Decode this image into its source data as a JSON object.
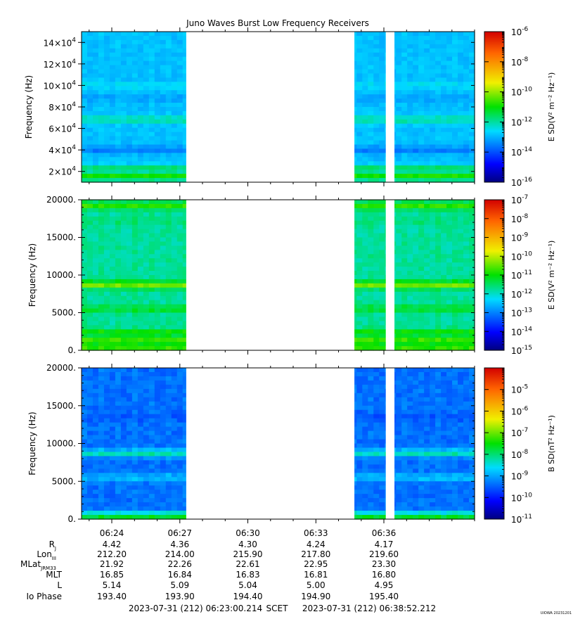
{
  "title": "Juno Waves Burst Low Frequency Receivers",
  "footer": {
    "scet_start": "2023-07-31 (212) 06:23:00.214",
    "scet_label": "SCET",
    "scet_end": "2023-07-31 (212) 06:38:52.212",
    "version": "UIOWA 20231201"
  },
  "chart_data": [
    {
      "type": "heatmap",
      "title": "Juno Waves Burst Low Frequency Receivers",
      "ylabel": "Frequency (Hz)",
      "ylim": [
        10000,
        150000
      ],
      "ytick_values": [
        20000,
        40000,
        60000,
        80000,
        100000,
        120000,
        140000
      ],
      "ytick_mantissas": [
        "2",
        "4",
        "6",
        "8",
        "10",
        "12",
        "14"
      ],
      "ytick_base": "×10",
      "ytick_exp": "4",
      "colorbar_label": "E SD(V² m⁻² Hz⁻¹)",
      "colorbar_log_range": [
        -16,
        -6
      ],
      "colorbar_ticks": [
        -16,
        -14,
        -12,
        -10,
        -8,
        -6
      ],
      "data_gaps": [
        [
          "06:27:17",
          "06:34:42"
        ],
        [
          "06:36:05",
          "06:36:28"
        ]
      ],
      "bands": [
        {
          "f": 15000,
          "level": -10.8
        },
        {
          "f": 22000,
          "level": -11.5
        },
        {
          "f": 40000,
          "level": -13.6
        },
        {
          "f": 68000,
          "level": -12.0
        },
        {
          "f": 88000,
          "level": -13.2
        },
        {
          "f": 100000,
          "level": -12.6
        }
      ],
      "background_level": -12.9
    },
    {
      "type": "heatmap",
      "ylabel": "Frequency (Hz)",
      "ylim": [
        0,
        20000
      ],
      "ytick_values": [
        0,
        5000,
        10000,
        15000,
        20000
      ],
      "ytick_labels": [
        "0.",
        "5000.",
        "10000.",
        "15000.",
        "20000."
      ],
      "colorbar_label": "E SD(V² m⁻² Hz⁻¹)",
      "colorbar_log_range": [
        -15,
        -7
      ],
      "colorbar_ticks": [
        -15,
        -14,
        -13,
        -12,
        -11,
        -10,
        -9,
        -8,
        -7
      ],
      "data_gaps": [
        [
          "06:27:17",
          "06:34:42"
        ],
        [
          "06:36:05",
          "06:36:28"
        ]
      ],
      "bands": [
        {
          "f": 500,
          "level": -10.6
        },
        {
          "f": 1500,
          "level": -10.7
        },
        {
          "f": 2300,
          "level": -10.9
        },
        {
          "f": 5500,
          "level": -11.2
        },
        {
          "f": 8700,
          "level": -10.4
        },
        {
          "f": 17200,
          "level": -11.6
        },
        {
          "f": 19200,
          "level": -10.8
        }
      ],
      "background_level": -11.8
    },
    {
      "type": "heatmap",
      "ylabel": "Frequency (Hz)",
      "ylim": [
        0,
        20000
      ],
      "ytick_values": [
        0,
        5000,
        10000,
        15000,
        20000
      ],
      "ytick_labels": [
        "0.",
        "5000.",
        "10000.",
        "15000.",
        "20000."
      ],
      "colorbar_label": "B SD(nT² Hz⁻¹)",
      "colorbar_log_range": [
        -11,
        -4
      ],
      "colorbar_ticks": [
        -11,
        -10,
        -9,
        -8,
        -7,
        -6,
        -5
      ],
      "data_gaps": [
        [
          "06:27:17",
          "06:34:42"
        ],
        [
          "06:36:05",
          "06:36:28"
        ]
      ],
      "bands": [
        {
          "f": 400,
          "level": -7.6
        },
        {
          "f": 8700,
          "level": -8.3
        },
        {
          "f": 5500,
          "level": -8.8
        },
        {
          "f": 13500,
          "level": -9.6
        }
      ],
      "background_level": -9.4
    }
  ],
  "time_axis": {
    "start": "06:22:40",
    "end": "06:40:00",
    "major_ticks": [
      "06:24",
      "06:27",
      "06:30",
      "06:33",
      "06:36"
    ],
    "minor_tick_step_min": 1
  },
  "ephemeris": {
    "labels": [
      {
        "base": "R",
        "sub": "J"
      },
      {
        "base": "Lon",
        "sub": "III"
      },
      {
        "base": "MLat",
        "sub": "JRM33"
      },
      {
        "base": "MLT",
        "sub": ""
      },
      {
        "base": "L",
        "sub": ""
      },
      {
        "base": "Io Phase",
        "sub": ""
      }
    ],
    "rows": [
      [
        "4.42",
        "4.36",
        "4.30",
        "4.24",
        "4.17"
      ],
      [
        "212.20",
        "214.00",
        "215.90",
        "217.80",
        "219.60"
      ],
      [
        "21.92",
        "22.26",
        "22.61",
        "22.95",
        "23.30"
      ],
      [
        "16.85",
        "16.84",
        "16.83",
        "16.81",
        "16.80"
      ],
      [
        "5.14",
        "5.09",
        "5.04",
        "5.00",
        "4.95"
      ],
      [
        "193.40",
        "193.90",
        "194.40",
        "194.90",
        "195.40"
      ]
    ]
  }
}
